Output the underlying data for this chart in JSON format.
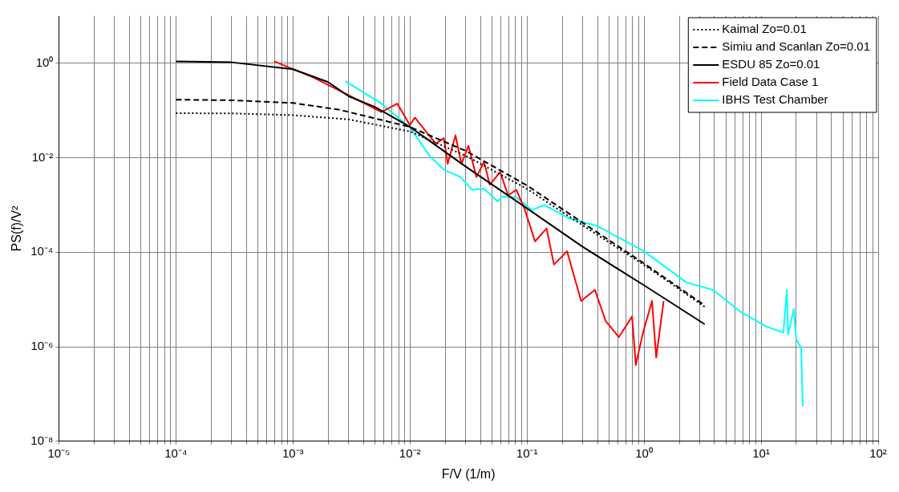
{
  "chart_data": {
    "type": "line",
    "xlabel": "F/V (1/m)",
    "ylabel": "PS(f)/V²",
    "log": "xy",
    "grid": true,
    "legend": "top right",
    "marker": "none",
    "xlim": [
      1e-05,
      100
    ],
    "ylim": [
      1e-08,
      10
    ],
    "xticks": [
      {
        "value": 1e-05,
        "label": "10⁻⁵"
      },
      {
        "value": 2e-05,
        "label": null
      },
      {
        "value": 3e-05,
        "label": null
      },
      {
        "value": 4e-05,
        "label": null
      },
      {
        "value": 5e-05,
        "label": null
      },
      {
        "value": 6e-05,
        "label": null
      },
      {
        "value": 7e-05,
        "label": null
      },
      {
        "value": 8e-05,
        "label": null
      },
      {
        "value": 9e-05,
        "label": null
      },
      {
        "value": 0.0001,
        "label": "10⁻⁴"
      },
      {
        "value": 0.0002,
        "label": null
      },
      {
        "value": 0.0003,
        "label": null
      },
      {
        "value": 0.0004,
        "label": null
      },
      {
        "value": 0.0005,
        "label": null
      },
      {
        "value": 0.0006,
        "label": null
      },
      {
        "value": 0.0007,
        "label": null
      },
      {
        "value": 0.0008,
        "label": null
      },
      {
        "value": 0.0009,
        "label": null
      },
      {
        "value": 0.001,
        "label": "10⁻³"
      },
      {
        "value": 0.002,
        "label": null
      },
      {
        "value": 0.003,
        "label": null
      },
      {
        "value": 0.004,
        "label": null
      },
      {
        "value": 0.005,
        "label": null
      },
      {
        "value": 0.006,
        "label": null
      },
      {
        "value": 0.007,
        "label": null
      },
      {
        "value": 0.008,
        "label": null
      },
      {
        "value": 0.009,
        "label": null
      },
      {
        "value": 0.01,
        "label": "10⁻²"
      },
      {
        "value": 0.02,
        "label": null
      },
      {
        "value": 0.03,
        "label": null
      },
      {
        "value": 0.04,
        "label": null
      },
      {
        "value": 0.05,
        "label": null
      },
      {
        "value": 0.06,
        "label": null
      },
      {
        "value": 0.07,
        "label": null
      },
      {
        "value": 0.08,
        "label": null
      },
      {
        "value": 0.09,
        "label": null
      },
      {
        "value": 0.1,
        "label": "10⁻¹"
      },
      {
        "value": 0.2,
        "label": null
      },
      {
        "value": 0.3,
        "label": null
      },
      {
        "value": 0.4,
        "label": null
      },
      {
        "value": 0.5,
        "label": null
      },
      {
        "value": 0.6,
        "label": null
      },
      {
        "value": 0.7,
        "label": null
      },
      {
        "value": 0.8,
        "label": null
      },
      {
        "value": 0.9,
        "label": null
      },
      {
        "value": 1,
        "label": "10⁰"
      },
      {
        "value": 2,
        "label": null
      },
      {
        "value": 3,
        "label": null
      },
      {
        "value": 4,
        "label": null
      },
      {
        "value": 5,
        "label": null
      },
      {
        "value": 6,
        "label": null
      },
      {
        "value": 7,
        "label": null
      },
      {
        "value": 8,
        "label": null
      },
      {
        "value": 9,
        "label": null
      },
      {
        "value": 10,
        "label": "10¹"
      },
      {
        "value": 20,
        "label": null
      },
      {
        "value": 30,
        "label": null
      },
      {
        "value": 40,
        "label": null
      },
      {
        "value": 50,
        "label": null
      },
      {
        "value": 60,
        "label": null
      },
      {
        "value": 70,
        "label": null
      },
      {
        "value": 80,
        "label": null
      },
      {
        "value": 90,
        "label": null
      },
      {
        "value": 100,
        "label": "10²"
      }
    ],
    "yticks": [
      {
        "value": 1e-08,
        "label": "10⁻⁸"
      },
      {
        "value": 1e-06,
        "label": "10⁻⁶"
      },
      {
        "value": 0.0001,
        "label": "10⁻⁴"
      },
      {
        "value": 0.01,
        "label": "10⁻²"
      },
      {
        "value": 1,
        "label": "10⁰"
      }
    ],
    "series": [
      {
        "name": "Kaimal Zo=0.01",
        "color": "#000000",
        "line_style": "dotted",
        "x": [
          0.0001,
          0.0003,
          0.001,
          0.003,
          0.01,
          0.03,
          0.1,
          0.3,
          1,
          3.3
        ],
        "values": [
          0.088,
          0.087,
          0.08,
          0.065,
          0.036,
          0.011,
          0.0022,
          0.00037,
          5.4e-05,
          7e-06
        ]
      },
      {
        "name": "Simiu and Scanlan Zo=0.01",
        "color": "#000000",
        "line_style": "dashed",
        "x": [
          0.0001,
          0.0003,
          0.001,
          0.0025,
          0.01,
          0.03,
          0.1,
          0.3,
          1,
          3.3
        ],
        "values": [
          0.17,
          0.165,
          0.145,
          0.104,
          0.045,
          0.014,
          0.0026,
          0.00042,
          5.8e-05,
          7.5e-06
        ]
      },
      {
        "name": "ESDU 85 Zo=0.01",
        "color": "#000000",
        "line_style": "solid",
        "x": [
          0.0001,
          0.0003,
          0.001,
          0.002,
          0.003,
          0.005,
          0.01,
          0.03,
          0.1,
          0.3,
          1,
          3.3
        ],
        "values": [
          1.1,
          1.05,
          0.75,
          0.4,
          0.2,
          0.12,
          0.045,
          0.0065,
          0.00085,
          0.00013,
          2e-05,
          3e-06
        ]
      },
      {
        "name": "Field Data Case 1",
        "color": "#ff0000",
        "line_style": "solid",
        "x": [
          0.00069,
          0.0015,
          0.0029,
          0.0057,
          0.0078,
          0.01,
          0.011,
          0.0166,
          0.0195,
          0.021,
          0.0245,
          0.0275,
          0.0316,
          0.037,
          0.043,
          0.048,
          0.059,
          0.069,
          0.081,
          0.095,
          0.117,
          0.147,
          0.17,
          0.22,
          0.29,
          0.38,
          0.47,
          0.61,
          0.79,
          0.85,
          0.98,
          1.17,
          1.27,
          1.47
        ],
        "values": [
          1.1,
          0.5,
          0.22,
          0.093,
          0.14,
          0.049,
          0.071,
          0.02,
          0.026,
          0.0074,
          0.03,
          0.0074,
          0.018,
          0.0039,
          0.0083,
          0.0027,
          0.005,
          0.0016,
          0.0021,
          0.00085,
          0.00017,
          0.00032,
          5.5e-05,
          0.000105,
          9.3e-06,
          1.6e-05,
          3.5e-06,
          1.6e-06,
          4.4e-06,
          4.1e-07,
          2e-06,
          9.3e-06,
          5.9e-07,
          9.3e-06
        ]
      },
      {
        "name": "IBHS Test Chamber",
        "color": "#00ffff",
        "line_style": "solid",
        "x": [
          0.0028,
          0.0055,
          0.01,
          0.0148,
          0.0195,
          0.027,
          0.034,
          0.043,
          0.056,
          0.062,
          0.081,
          0.11,
          0.14,
          0.23,
          0.4,
          1,
          2.3,
          3.9,
          6.6,
          11,
          15.5,
          16.6,
          17,
          19,
          20,
          22,
          22.7
        ],
        "values": [
          0.42,
          0.15,
          0.044,
          0.0108,
          0.0056,
          0.0039,
          0.0021,
          0.0022,
          0.0012,
          0.0015,
          0.00145,
          0.00078,
          0.001,
          0.00052,
          0.00036,
          0.000105,
          2.3e-05,
          1.6e-05,
          5.6e-06,
          2.7e-06,
          2e-06,
          1.6e-05,
          1.8e-06,
          6.3e-06,
          1.4e-06,
          9.6e-07,
          5.5e-08
        ]
      }
    ]
  }
}
